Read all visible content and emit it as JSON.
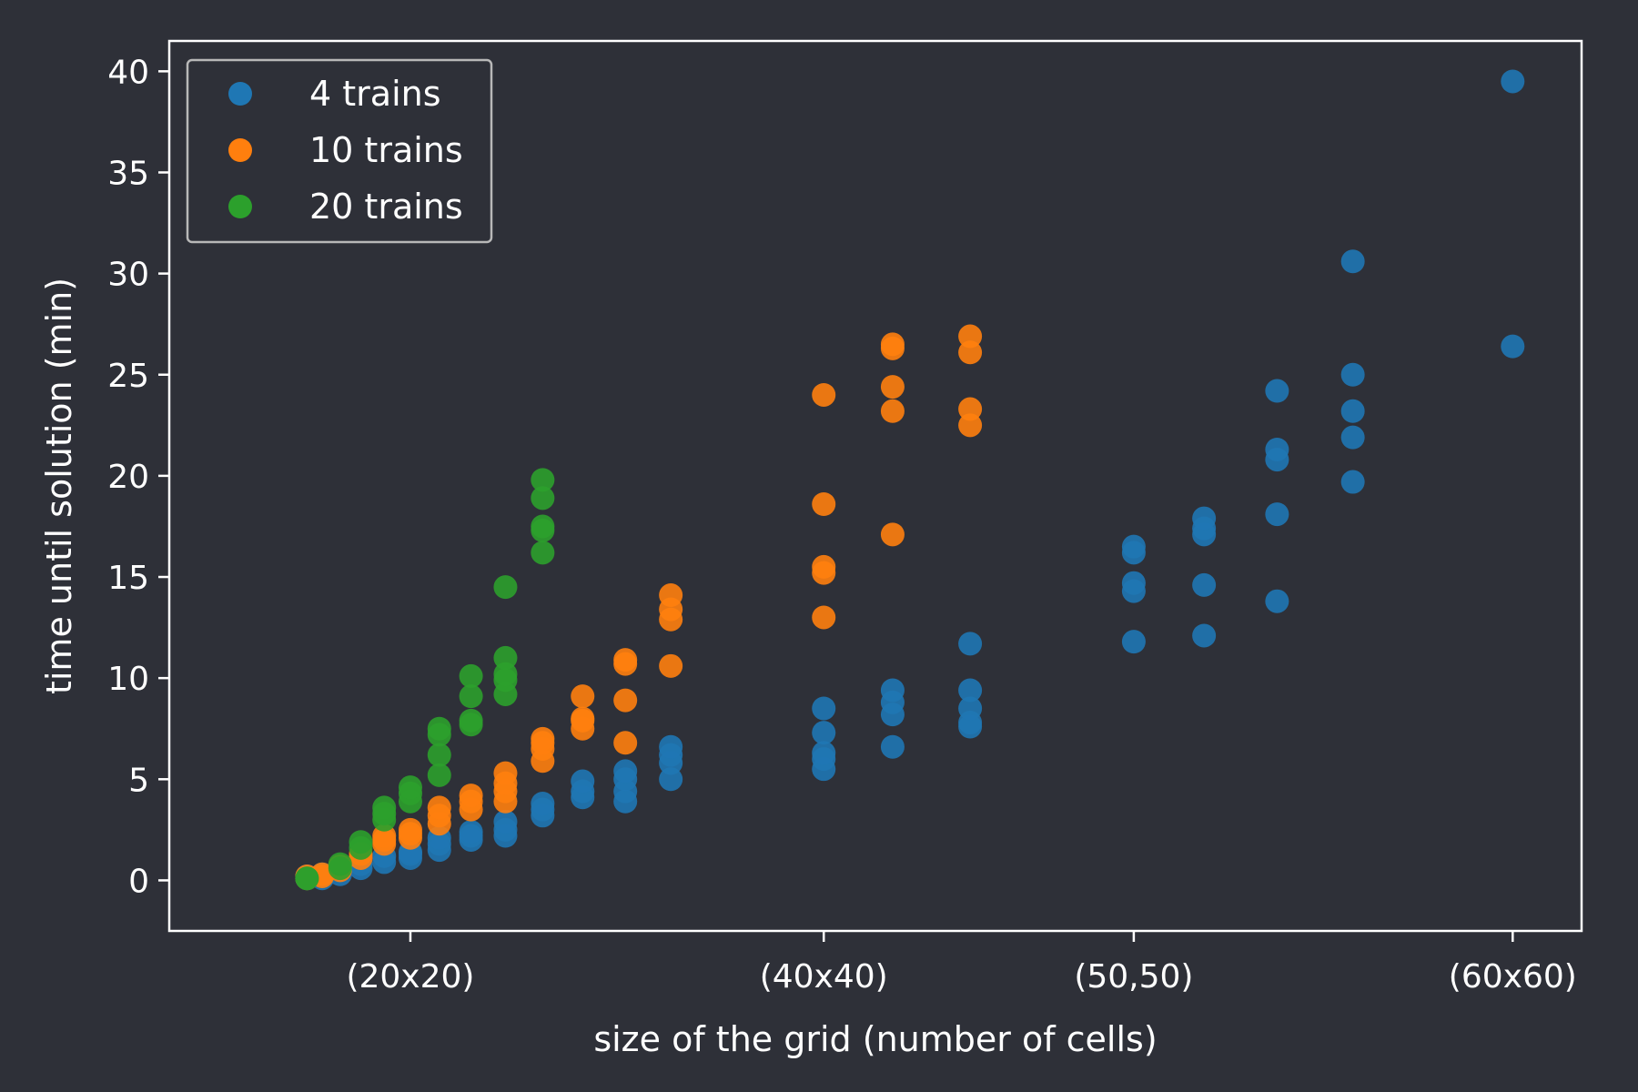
{
  "chart_data": {
    "type": "scatter",
    "title": "",
    "xlabel": "size of the grid (number of cells)",
    "ylabel": "time until solution (min)",
    "x_scale": "number of cells",
    "xlim": [
      -300,
      3800
    ],
    "ylim": [
      -2.5,
      41.5
    ],
    "x_ticks": [
      {
        "value": 400,
        "label": "(20x20)"
      },
      {
        "value": 1600,
        "label": "(40x40)"
      },
      {
        "value": 2500,
        "label": "(50,50)"
      },
      {
        "value": 3600,
        "label": "(60x60)"
      }
    ],
    "y_ticks": [
      0,
      5,
      10,
      15,
      20,
      25,
      30,
      35,
      40
    ],
    "grid": false,
    "legend_position": "top-left",
    "colors": {
      "background": "#2e3038",
      "axes": "#ffffff",
      "text": "#ffffff",
      "legend_border": "#b8b8b8"
    },
    "series": [
      {
        "name": "4 trains",
        "color": "#1f77b4",
        "points": [
          [
            100,
            0.1
          ],
          [
            100,
            0.2
          ],
          [
            144,
            0.1
          ],
          [
            144,
            0.3
          ],
          [
            196,
            0.3
          ],
          [
            196,
            0.5
          ],
          [
            256,
            0.6
          ],
          [
            256,
            0.8
          ],
          [
            324,
            0.9
          ],
          [
            324,
            1.2
          ],
          [
            400,
            1.1
          ],
          [
            400,
            1.3
          ],
          [
            400,
            1.4
          ],
          [
            484,
            1.5
          ],
          [
            484,
            1.8
          ],
          [
            484,
            2.1
          ],
          [
            576,
            2.0
          ],
          [
            576,
            2.2
          ],
          [
            576,
            2.4
          ],
          [
            676,
            2.2
          ],
          [
            676,
            2.5
          ],
          [
            676,
            2.9
          ],
          [
            784,
            3.2
          ],
          [
            784,
            3.5
          ],
          [
            784,
            3.8
          ],
          [
            900,
            4.1
          ],
          [
            900,
            4.4
          ],
          [
            900,
            4.9
          ],
          [
            1024,
            3.9
          ],
          [
            1024,
            4.4
          ],
          [
            1024,
            5.0
          ],
          [
            1024,
            5.4
          ],
          [
            1156,
            5.0
          ],
          [
            1156,
            5.8
          ],
          [
            1156,
            6.2
          ],
          [
            1156,
            6.6
          ],
          [
            1600,
            5.5
          ],
          [
            1600,
            6.0
          ],
          [
            1600,
            6.3
          ],
          [
            1600,
            7.3
          ],
          [
            1600,
            8.5
          ],
          [
            1800,
            6.6
          ],
          [
            1800,
            8.2
          ],
          [
            1800,
            8.8
          ],
          [
            1800,
            9.4
          ],
          [
            2025,
            7.6
          ],
          [
            2025,
            7.8
          ],
          [
            2025,
            8.5
          ],
          [
            2025,
            9.4
          ],
          [
            2025,
            11.7
          ],
          [
            2500,
            11.8
          ],
          [
            2500,
            14.3
          ],
          [
            2500,
            14.7
          ],
          [
            2500,
            16.2
          ],
          [
            2500,
            16.5
          ],
          [
            2704,
            12.1
          ],
          [
            2704,
            14.6
          ],
          [
            2704,
            17.1
          ],
          [
            2704,
            17.4
          ],
          [
            2704,
            17.9
          ],
          [
            2916,
            13.8
          ],
          [
            2916,
            18.1
          ],
          [
            2916,
            20.8
          ],
          [
            2916,
            21.3
          ],
          [
            2916,
            24.2
          ],
          [
            3136,
            19.7
          ],
          [
            3136,
            21.9
          ],
          [
            3136,
            23.2
          ],
          [
            3136,
            25.0
          ],
          [
            3136,
            30.6
          ],
          [
            3600,
            26.4
          ],
          [
            3600,
            39.5
          ]
        ]
      },
      {
        "name": "10 trains",
        "color": "#ff7f0e",
        "points": [
          [
            100,
            0.1
          ],
          [
            100,
            0.2
          ],
          [
            144,
            0.2
          ],
          [
            144,
            0.3
          ],
          [
            196,
            0.5
          ],
          [
            196,
            0.7
          ],
          [
            256,
            1.1
          ],
          [
            256,
            1.3
          ],
          [
            324,
            1.8
          ],
          [
            324,
            2.0
          ],
          [
            324,
            2.2
          ],
          [
            400,
            2.1
          ],
          [
            400,
            2.3
          ],
          [
            400,
            2.5
          ],
          [
            484,
            2.8
          ],
          [
            484,
            3.2
          ],
          [
            484,
            3.6
          ],
          [
            576,
            3.5
          ],
          [
            576,
            3.9
          ],
          [
            576,
            4.2
          ],
          [
            676,
            3.9
          ],
          [
            676,
            4.4
          ],
          [
            676,
            4.8
          ],
          [
            676,
            5.3
          ],
          [
            784,
            5.9
          ],
          [
            784,
            6.5
          ],
          [
            784,
            6.8
          ],
          [
            784,
            7.0
          ],
          [
            900,
            7.5
          ],
          [
            900,
            7.9
          ],
          [
            900,
            8.0
          ],
          [
            900,
            9.1
          ],
          [
            1024,
            6.8
          ],
          [
            1024,
            8.9
          ],
          [
            1024,
            10.7
          ],
          [
            1024,
            10.9
          ],
          [
            1156,
            10.6
          ],
          [
            1156,
            12.9
          ],
          [
            1156,
            13.4
          ],
          [
            1156,
            14.1
          ],
          [
            1600,
            13.0
          ],
          [
            1600,
            15.2
          ],
          [
            1600,
            15.5
          ],
          [
            1600,
            18.6
          ],
          [
            1600,
            24.0
          ],
          [
            1800,
            17.1
          ],
          [
            1800,
            23.2
          ],
          [
            1800,
            24.4
          ],
          [
            1800,
            26.3
          ],
          [
            1800,
            26.5
          ],
          [
            2025,
            22.5
          ],
          [
            2025,
            23.3
          ],
          [
            2025,
            26.1
          ],
          [
            2025,
            26.9
          ]
        ]
      },
      {
        "name": "20 trains",
        "color": "#2ca02c",
        "points": [
          [
            100,
            0.1
          ],
          [
            100,
            0.1
          ],
          [
            196,
            0.6
          ],
          [
            196,
            0.8
          ],
          [
            256,
            1.6
          ],
          [
            256,
            1.9
          ],
          [
            324,
            3.0
          ],
          [
            324,
            3.3
          ],
          [
            324,
            3.6
          ],
          [
            400,
            3.9
          ],
          [
            400,
            4.3
          ],
          [
            400,
            4.6
          ],
          [
            484,
            5.2
          ],
          [
            484,
            6.2
          ],
          [
            484,
            7.2
          ],
          [
            484,
            7.5
          ],
          [
            576,
            7.7
          ],
          [
            576,
            7.9
          ],
          [
            576,
            9.1
          ],
          [
            576,
            10.1
          ],
          [
            676,
            9.2
          ],
          [
            676,
            9.9
          ],
          [
            676,
            10.2
          ],
          [
            676,
            11.0
          ],
          [
            676,
            14.5
          ],
          [
            784,
            16.2
          ],
          [
            784,
            17.3
          ],
          [
            784,
            17.5
          ],
          [
            784,
            18.9
          ],
          [
            784,
            19.8
          ]
        ]
      }
    ]
  }
}
